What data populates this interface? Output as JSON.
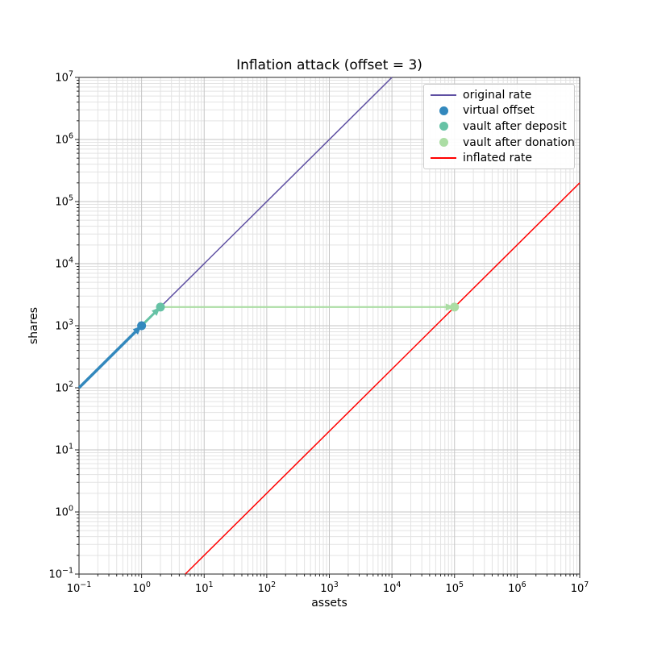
{
  "chart_data": {
    "type": "line",
    "title": "Inflation attack (offset = 3)",
    "xlabel": "assets",
    "ylabel": "shares",
    "x_scale": "log",
    "y_scale": "log",
    "xlim": [
      0.1,
      10000000
    ],
    "ylim": [
      0.1,
      10000000
    ],
    "x_tick_exponents": [
      -1,
      0,
      1,
      2,
      3,
      4,
      5,
      6,
      7
    ],
    "y_tick_exponents": [
      -1,
      0,
      1,
      2,
      3,
      4,
      5,
      6,
      7
    ],
    "grid": "both",
    "legend_position": "upper right",
    "series": [
      {
        "name": "original rate",
        "kind": "line",
        "color": "#5e4fa2",
        "points": [
          [
            0.1,
            100
          ],
          [
            10000,
            10000000
          ]
        ]
      },
      {
        "name": "virtual offset",
        "kind": "scatter",
        "color": "#3288bd",
        "points": [
          [
            1,
            1000
          ]
        ]
      },
      {
        "name": "vault after deposit",
        "kind": "scatter",
        "color": "#66c2a5",
        "points": [
          [
            2,
            2000
          ]
        ]
      },
      {
        "name": "vault after donation",
        "kind": "scatter",
        "color": "#abdda4",
        "points": [
          [
            100000,
            2000
          ]
        ]
      },
      {
        "name": "inflated rate",
        "kind": "line",
        "color": "#ff0000",
        "points": [
          [
            5,
            0.1
          ],
          [
            10000000,
            200000
          ]
        ]
      }
    ],
    "arrows": [
      {
        "from": [
          0.1,
          100
        ],
        "to": [
          1,
          1000
        ],
        "color": "#3288bd",
        "width": 3.5
      },
      {
        "from": [
          1,
          1000
        ],
        "to": [
          2,
          2000
        ],
        "color": "#66c2a5",
        "width": 3
      },
      {
        "from": [
          2,
          2000
        ],
        "to": [
          100000,
          2000
        ],
        "color": "#abdda4",
        "width": 2.2
      }
    ],
    "colors": {
      "major_grid": "#c6c6c6",
      "minor_grid": "#e3e3e3",
      "axis": "#262626",
      "background": "#ffffff"
    }
  }
}
